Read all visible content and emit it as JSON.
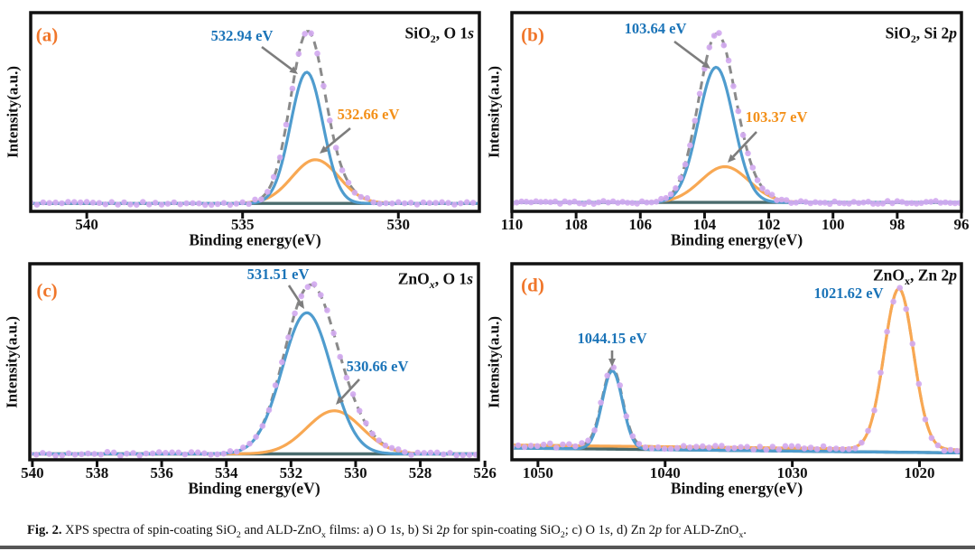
{
  "figure": {
    "caption_segments": [
      {
        "t": "Fig. 2.",
        "b": 1
      },
      {
        "t": "  XPS spectra of spin-coating SiO"
      },
      {
        "t": "2",
        "sub": 1
      },
      {
        "t": " and ALD-ZnO"
      },
      {
        "t": "x",
        "sub": 1
      },
      {
        "t": " films: a) O 1"
      },
      {
        "t": "s",
        "i": 1
      },
      {
        "t": ", b) Si 2"
      },
      {
        "t": "p",
        "i": 1
      },
      {
        "t": " for spin-coating SiO"
      },
      {
        "t": "2",
        "sub": 1
      },
      {
        "t": "; c) O 1"
      },
      {
        "t": "s",
        "i": 1
      },
      {
        "t": ", d) Zn 2"
      },
      {
        "t": "p",
        "i": 1
      },
      {
        "t": " for ALD-ZnO"
      },
      {
        "t": "x",
        "sub": 1
      },
      {
        "t": "."
      }
    ],
    "colors": {
      "panel_letter": "#f0762a",
      "annotation_blue": "#1b74b8",
      "annotation_orange": "#f39019",
      "curve_blue": "#4f9cce",
      "curve_orange": "#f8a853",
      "measured_dots": "#d3abf0",
      "fit_envelope": "#8a8a8a",
      "background_line": "#4a6b6d",
      "arrow": "#7d7d7d",
      "axis": "#111111"
    }
  },
  "chart_data": [
    {
      "type": "line",
      "panel_label": "(a)",
      "title_segments": [
        {
          "t": "SiO"
        },
        {
          "t": "2",
          "sub": 1
        },
        {
          "t": ", O 1"
        },
        {
          "t": "s",
          "i": 1
        }
      ],
      "xlabel": "Binding energy(eV)",
      "ylabel": "Intensity(a.u.)",
      "x_range": [
        541.8,
        527.4
      ],
      "x_ticks": [
        540,
        535,
        530
      ],
      "grid": false,
      "legend": "none",
      "baseline": [
        0.04,
        0.04
      ],
      "box": {
        "l": 34,
        "r": 531,
        "t": 14,
        "b": 234
      },
      "label_pos": {
        "letter": [
          52,
          39
        ],
        "title": [
          525,
          37
        ],
        "tick_dy": 14,
        "xlabel_dy": 32
      },
      "series": [
        {
          "name": "measured-data",
          "style": "dots",
          "color": "#d3abf0",
          "step_ev": 0.2,
          "noise": 0.008
        },
        {
          "name": "total-fit",
          "style": "dashed",
          "color": "#8a8a8a"
        },
        {
          "name": "component-peak-1",
          "style": "solid",
          "color": "#4f9cce",
          "center": 532.94,
          "sigma": 0.52,
          "amp": 0.66
        },
        {
          "name": "component-peak-2",
          "style": "solid",
          "color": "#f8a853",
          "center": 532.66,
          "sigma": 0.75,
          "amp": 0.22
        },
        {
          "name": "background",
          "style": "solid",
          "color": "#4a6b6d"
        }
      ],
      "annotations": [
        {
          "text": "532.94 eV",
          "color": "#1b74b8",
          "x": 268,
          "y": 40,
          "arrow": [
            290,
            52,
            330,
            82
          ]
        },
        {
          "text": "532.66 eV",
          "color": "#f39019",
          "x": 408,
          "y": 127,
          "arrow": [
            388,
            142,
            354,
            170
          ]
        }
      ]
    },
    {
      "type": "line",
      "panel_label": "(b)",
      "title_segments": [
        {
          "t": "SiO"
        },
        {
          "t": "2",
          "sub": 1
        },
        {
          "t": ", Si 2"
        },
        {
          "t": "p",
          "i": 1
        }
      ],
      "xlabel": "Binding energy(eV)",
      "ylabel": "Intensity(a.u.)",
      "x_range": [
        110,
        96
      ],
      "x_ticks": [
        110,
        108,
        106,
        104,
        102,
        100,
        98,
        96
      ],
      "grid": false,
      "legend": "none",
      "baseline": [
        0.045,
        0.045
      ],
      "box": {
        "l": 27,
        "r": 525,
        "t": 14,
        "b": 234
      },
      "label_pos": {
        "letter": [
          50,
          39
        ],
        "title": [
          520,
          37
        ],
        "tick_dy": 14,
        "xlabel_dy": 32
      },
      "series": [
        {
          "name": "measured-data",
          "style": "dots",
          "color": "#d3abf0",
          "step_ev": 0.15,
          "noise": 0.008
        },
        {
          "name": "total-fit",
          "style": "dashed",
          "color": "#8a8a8a"
        },
        {
          "name": "component-peak-1",
          "style": "solid",
          "color": "#4f9cce",
          "center": 103.64,
          "sigma": 0.55,
          "amp": 0.68
        },
        {
          "name": "component-peak-2",
          "style": "solid",
          "color": "#f8a853",
          "center": 103.37,
          "sigma": 0.75,
          "amp": 0.18
        },
        {
          "name": "background",
          "style": "solid",
          "color": "#4a6b6d"
        }
      ],
      "annotations": [
        {
          "text": "103.64 eV",
          "color": "#1b74b8",
          "x": 186,
          "y": 32,
          "arrow": [
            207,
            46,
            247,
            76
          ]
        },
        {
          "text": "103.37 eV",
          "color": "#f39019",
          "x": 320,
          "y": 130,
          "arrow": [
            298,
            146,
            266,
            180
          ]
        }
      ]
    },
    {
      "type": "line",
      "panel_label": "(c)",
      "title_segments": [
        {
          "t": "ZnO"
        },
        {
          "t": "x",
          "sub": 1,
          "i": 1
        },
        {
          "t": ", O 1"
        },
        {
          "t": "s",
          "i": 1
        }
      ],
      "xlabel": "Binding energy(eV)",
      "ylabel": "Intensity(a.u.)",
      "x_range": [
        540.08,
        526.2
      ],
      "x_ticks": [
        540,
        538,
        536,
        534,
        532,
        530,
        528,
        526
      ],
      "grid": false,
      "legend": "none",
      "baseline": [
        0.03,
        0.03
      ],
      "box": {
        "l": 33,
        "r": 530,
        "t": 12,
        "b": 229
      },
      "label_pos": {
        "letter": [
          52,
          42
        ],
        "title": [
          524,
          29
        ],
        "tick_dy": 14,
        "xlabel_dy": 32
      },
      "series": [
        {
          "name": "measured-data",
          "style": "dots",
          "color": "#d3abf0",
          "step_ev": 0.2,
          "noise": 0.01
        },
        {
          "name": "total-fit",
          "style": "dashed",
          "color": "#8a8a8a"
        },
        {
          "name": "component-peak-1",
          "style": "solid",
          "color": "#4f9cce",
          "center": 531.51,
          "sigma": 0.76,
          "amp": 0.72
        },
        {
          "name": "component-peak-2",
          "style": "solid",
          "color": "#f8a853",
          "center": 530.66,
          "sigma": 0.85,
          "amp": 0.22
        },
        {
          "name": "background",
          "style": "solid",
          "color": "#4a6b6d"
        }
      ],
      "annotations": [
        {
          "text": "531.51 eV",
          "color": "#1b74b8",
          "x": 308,
          "y": 24,
          "arrow": [
            320,
            36,
            337,
            62
          ]
        },
        {
          "text": "530.66 eV",
          "color": "#1b74b8",
          "x": 418,
          "y": 126,
          "arrow": [
            398,
            140,
            372,
            168
          ]
        }
      ]
    },
    {
      "type": "line",
      "panel_label": "(d)",
      "title_segments": [
        {
          "t": "ZnO"
        },
        {
          "t": "x",
          "sub": 1
        },
        {
          "t": ", Zn 2"
        },
        {
          "t": "p",
          "i": 1
        }
      ],
      "xlabel": "Binding energy(eV)",
      "ylabel": "Intensity(a.u.)",
      "x_range": [
        1052.05,
        1016.7
      ],
      "x_ticks": [
        1050,
        1040,
        1030,
        1020
      ],
      "grid": false,
      "legend": "none",
      "baseline": [
        0.06,
        0.035
      ],
      "box": {
        "l": 27,
        "r": 525,
        "t": 12,
        "b": 229
      },
      "label_pos": {
        "letter": [
          50,
          36
        ],
        "title": [
          520,
          25
        ],
        "tick_dy": 14,
        "xlabel_dy": 32
      },
      "series": [
        {
          "name": "measured-data",
          "style": "dots",
          "color": "#d3abf0",
          "step_ev": 0.5,
          "noise": 0.012
        },
        {
          "name": "total-fit",
          "style": "dashed",
          "color": "#8a8a8a"
        },
        {
          "name": "component-peak-1",
          "style": "solid",
          "color": "#4f9cce",
          "center": 1044.15,
          "sigma": 0.8,
          "amp": 0.4
        },
        {
          "name": "component-peak-2",
          "style": "solid",
          "color": "#f8a853",
          "center": 1021.62,
          "sigma": 1.15,
          "amp": 0.82,
          "floor": 0.015
        },
        {
          "name": "background",
          "style": "solid",
          "color": "#4a6b6d"
        }
      ],
      "annotations": [
        {
          "text": "1021.62 eV",
          "color": "#1b74b8",
          "x": 400,
          "y": 45
        },
        {
          "text": "1044.15 eV",
          "color": "#1b74b8",
          "x": 138,
          "y": 95,
          "arrow": [
            138,
            108,
            138,
            126
          ]
        }
      ]
    }
  ]
}
